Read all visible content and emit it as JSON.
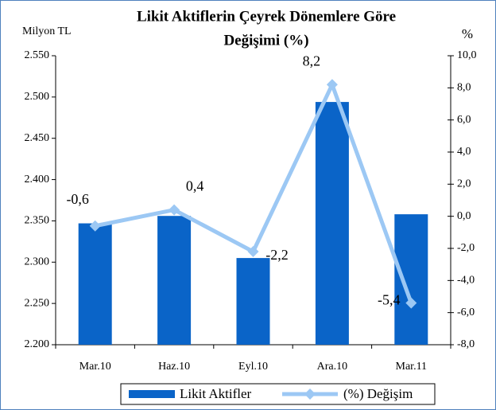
{
  "chart_data": {
    "type": "bar-line",
    "title": [
      "Likit Aktiflerin Çeyrek Dönemlere Göre",
      "Değişimi (%)"
    ],
    "y_label": "Milyon TL",
    "y2_label": "%",
    "categories": [
      "Mar.10",
      "Haz.10",
      "Eyl.10",
      "Ara.10",
      "Mar.11"
    ],
    "series": [
      {
        "name": "Likit Aktifler",
        "color": "#0a64c8",
        "kind": "bar",
        "values": [
          2347,
          2356,
          2305,
          2494,
          2358
        ]
      },
      {
        "name": "(%) Değişim",
        "color": "#9cc8f4",
        "kind": "line",
        "axis": "y2",
        "values": [
          -0.6,
          0.4,
          -2.2,
          8.2,
          -5.4
        ],
        "value_labels": [
          "-0,6",
          "0,4",
          "-2,2",
          "8,2",
          "-5,4"
        ]
      }
    ],
    "ylim": [
      2200,
      2550
    ],
    "yticks": [
      {
        "value": 2200,
        "label": "2.200"
      },
      {
        "value": 2250,
        "label": "2.250"
      },
      {
        "value": 2300,
        "label": "2.300"
      },
      {
        "value": 2350,
        "label": "2.350"
      },
      {
        "value": 2400,
        "label": "2.400"
      },
      {
        "value": 2450,
        "label": "2.450"
      },
      {
        "value": 2500,
        "label": "2.500"
      },
      {
        "value": 2550,
        "label": "2.550"
      }
    ],
    "y2lim": [
      -8,
      10
    ],
    "y2ticks": [
      {
        "value": -8,
        "label": "-8,0"
      },
      {
        "value": -6,
        "label": "-6,0"
      },
      {
        "value": -4,
        "label": "-4,0"
      },
      {
        "value": -2,
        "label": "-2,0"
      },
      {
        "value": 0,
        "label": "0,0"
      },
      {
        "value": 2,
        "label": "2,0"
      },
      {
        "value": 4,
        "label": "4,0"
      },
      {
        "value": 6,
        "label": "6,0"
      },
      {
        "value": 8,
        "label": "8,0"
      },
      {
        "value": 10,
        "label": "10,0"
      }
    ],
    "legend": "bottom"
  }
}
